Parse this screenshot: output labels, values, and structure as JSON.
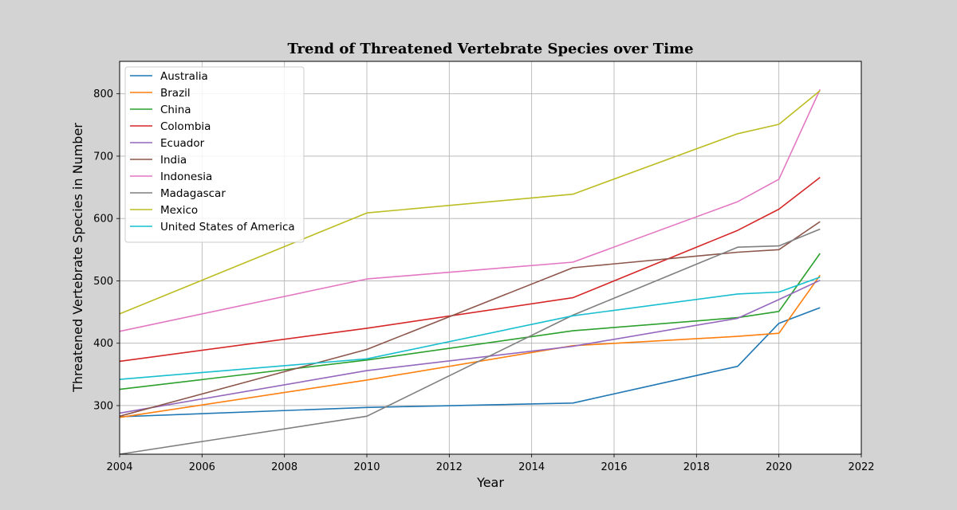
{
  "chart_data": {
    "type": "line",
    "title": "Trend of Threatened Vertebrate Species over Time",
    "xlabel": "Year",
    "ylabel": "Threatened Vertebrate Species in Number",
    "xlim": [
      2004,
      2022
    ],
    "ylim": [
      222,
      852
    ],
    "xticks": [
      2004,
      2006,
      2008,
      2010,
      2012,
      2014,
      2016,
      2018,
      2020,
      2022
    ],
    "yticks": [
      300,
      400,
      500,
      600,
      700,
      800
    ],
    "grid": true,
    "legend_position": "top-left",
    "x": [
      2004,
      2010,
      2015,
      2019,
      2020,
      2021
    ],
    "series": [
      {
        "name": "Australia",
        "color": "#1f77b4",
        "values": [
          282,
          297,
          304,
          363,
          432,
          457
        ]
      },
      {
        "name": "Brazil",
        "color": "#ff7f0e",
        "values": [
          281,
          341,
          396,
          411,
          416,
          509
        ]
      },
      {
        "name": "China",
        "color": "#2ca02c",
        "values": [
          326,
          373,
          420,
          441,
          451,
          544
        ]
      },
      {
        "name": "Colombia",
        "color": "#d62728",
        "values": [
          371,
          424,
          473,
          581,
          615,
          666
        ]
      },
      {
        "name": "Ecuador",
        "color": "#9467bd",
        "values": [
          288,
          356,
          395,
          440,
          470,
          501
        ]
      },
      {
        "name": "India",
        "color": "#8c564b",
        "values": [
          283,
          390,
          521,
          546,
          550,
          595
        ]
      },
      {
        "name": "Indonesia",
        "color": "#e377c2",
        "values": [
          419,
          503,
          530,
          627,
          663,
          807
        ]
      },
      {
        "name": "Madagascar",
        "color": "#7f7f7f",
        "values": [
          222,
          283,
          445,
          554,
          556,
          583
        ]
      },
      {
        "name": "Mexico",
        "color": "#bcbd22",
        "values": [
          447,
          609,
          639,
          736,
          751,
          805
        ]
      },
      {
        "name": "United States of America",
        "color": "#17becf",
        "values": [
          342,
          375,
          444,
          479,
          482,
          506
        ]
      }
    ]
  }
}
